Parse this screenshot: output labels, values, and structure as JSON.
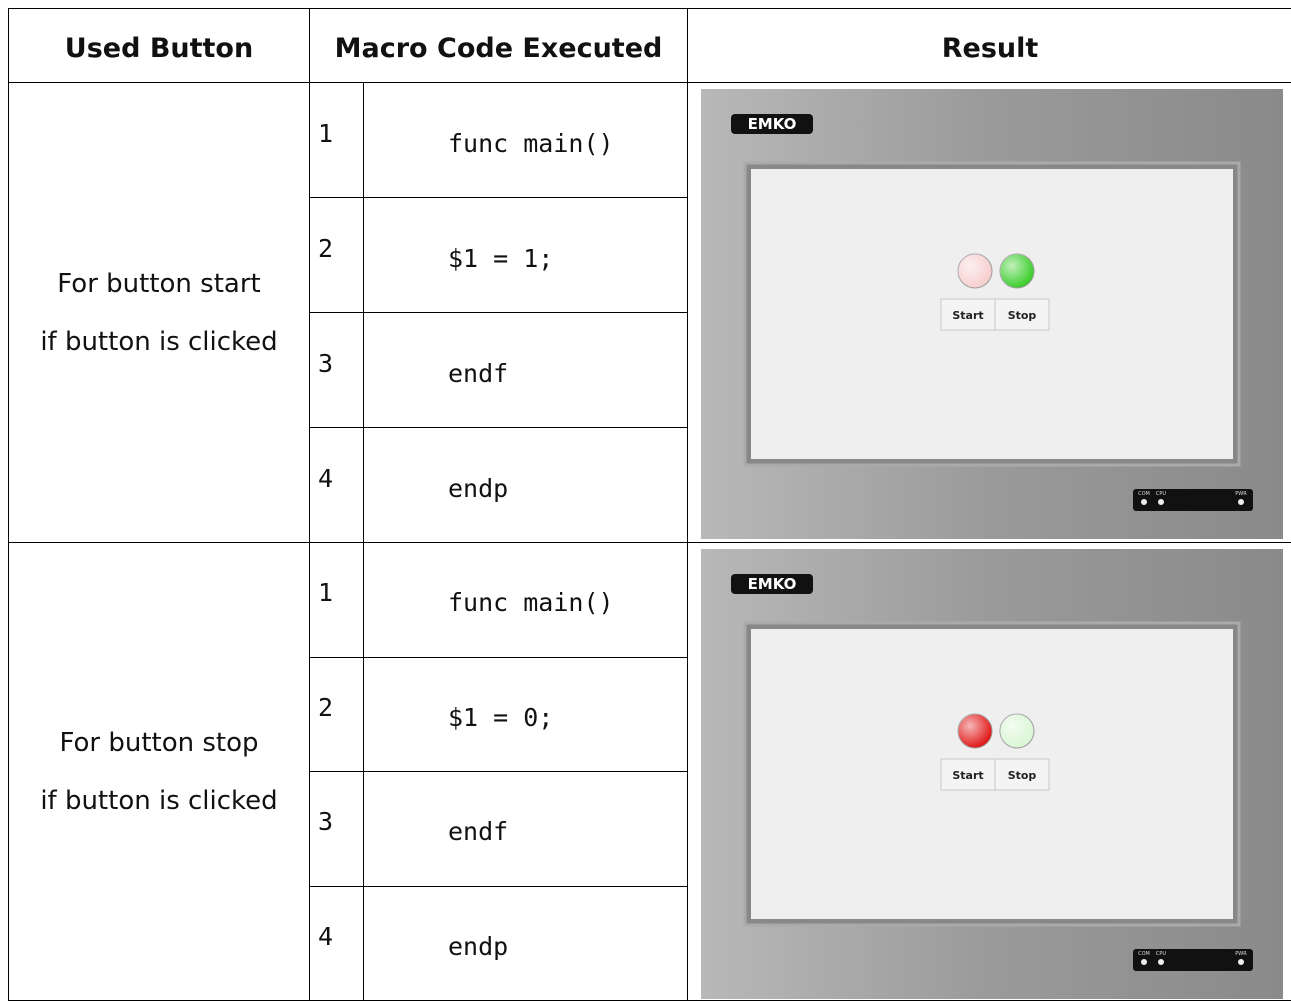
{
  "header": [
    "Used Button",
    "Macro Code Executed",
    "Result"
  ],
  "rows": [
    {
      "button": [
        "For button start",
        "if button is clicked"
      ],
      "code": [
        [
          "1",
          "func main()"
        ],
        [
          "2",
          "$1 = 1;"
        ],
        [
          "3",
          "endf"
        ],
        [
          "4",
          "endp"
        ]
      ],
      "result": {
        "logo": "EMKO",
        "buttons": [
          "Start",
          "Stop"
        ],
        "lamps": [
          "#f6cccc",
          "#33cc22"
        ],
        "leds": [
          "COM",
          "CPU",
          "PWR"
        ]
      }
    },
    {
      "button": [
        "For button stop",
        "if button is clicked"
      ],
      "code": [
        [
          "1",
          "func main()"
        ],
        [
          "2",
          "$1 = 0;"
        ],
        [
          "3",
          "endf"
        ],
        [
          "4",
          "endp"
        ]
      ],
      "result": {
        "logo": "EMKO",
        "buttons": [
          "Start",
          "Stop"
        ],
        "lamps": [
          "#e01010",
          "#d8f6d2"
        ],
        "leds": [
          "COM",
          "CPU",
          "PWR"
        ]
      }
    }
  ]
}
